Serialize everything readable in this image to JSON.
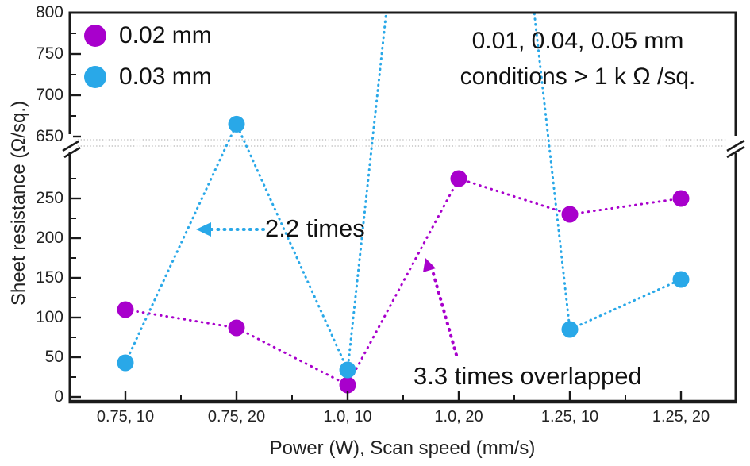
{
  "figure": {
    "background": "#ffffff"
  },
  "legend": {
    "items": [
      {
        "label": "0.02 mm",
        "color": "#a800cc"
      },
      {
        "label": "0.03 mm",
        "color": "#29a8e8"
      }
    ]
  },
  "annotations": {
    "offscale_note_line1": "0.01, 0.04, 0.05 mm",
    "offscale_note_line2": "conditions > 1 k Ω /sq.",
    "blue_arrow_label": "2.2 times",
    "purple_arrow_label": "3.3 times overlapped"
  },
  "chart_data": {
    "type": "scatter",
    "title": "",
    "xlabel": "Power (W), Scan speed (mm/s)",
    "ylabel": "Sheet resistance (Ω/sq.)",
    "categories": [
      "0.75, 10",
      "0.75, 20",
      "1.0, 10",
      "1.0, 20",
      "1.25, 10",
      "1.25, 20"
    ],
    "series": [
      {
        "name": "0.02 mm",
        "color": "#a800cc",
        "marker": "circle",
        "line_style": "dash-dot",
        "values": [
          110,
          87,
          15,
          275,
          230,
          250
        ]
      },
      {
        "name": "0.03 mm",
        "color": "#29a8e8",
        "marker": "circle",
        "line_style": "dotted",
        "values": [
          43,
          665,
          34,
          null,
          85,
          148
        ],
        "note": "value at (1.0, 20) is off scale, > 1000 Ω/sq."
      }
    ],
    "y_axis": {
      "label": "Sheet resistance (Ω/sq.)",
      "axis_break": {
        "from": 300,
        "to": 650
      },
      "lower_ticks": [
        0,
        50,
        100,
        150,
        200,
        250
      ],
      "upper_ticks": [
        650,
        700,
        750,
        800
      ],
      "lower_range": [
        0,
        300
      ],
      "upper_range": [
        650,
        800
      ]
    },
    "grid": false,
    "legend_position": "top-left",
    "annotations": [
      {
        "text": "2.2 times",
        "arrow_color": "#29a8e8",
        "arrow_direction": "left",
        "points_at": "0.03 mm line between 0.75,10 and 0.75,20"
      },
      {
        "text": "3.3 times overlapped",
        "arrow_color": "#a800cc",
        "arrow_direction": "up",
        "points_at": "0.02 mm line between 1.0,10 and 1.0,20"
      },
      {
        "text": "0.01, 0.04, 0.05 mm conditions > 1 k Ω /sq.",
        "position": "top-right"
      }
    ]
  }
}
